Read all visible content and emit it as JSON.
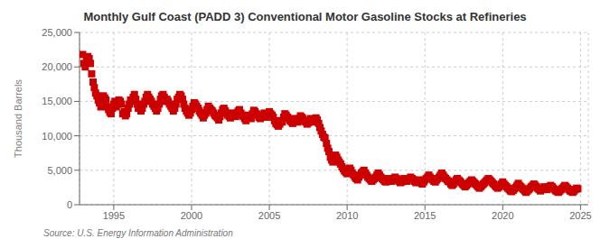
{
  "chart_data": {
    "type": "scatter",
    "title": "Monthly Gulf Coast (PADD 3) Conventional Motor Gasoline Stocks at Refineries",
    "ylabel": "Thousand Barrels",
    "annotations": [
      "Source: U.S. Energy Information Administration"
    ],
    "color": "#CC0000",
    "marker": "square",
    "grid": true,
    "xlim": [
      1992.8,
      2025.5
    ],
    "xticks": [
      1995,
      2000,
      2005,
      2010,
      2015,
      2020,
      2025
    ],
    "ylim": [
      0,
      25000
    ],
    "yticks": [
      0,
      {
        "value": 5000,
        "label": "5,000"
      },
      {
        "value": 10000,
        "label": "10,000"
      },
      {
        "value": 15000,
        "label": "15,000"
      },
      {
        "value": 20000,
        "label": "20,000"
      },
      {
        "value": 25000,
        "label": "25,000"
      }
    ],
    "x": [
      1993.0,
      1993.08,
      1993.17,
      1993.25,
      1993.33,
      1993.42,
      1993.5,
      1993.58,
      1993.67,
      1993.75,
      1993.83,
      1993.92,
      1994.0,
      1994.08,
      1994.17,
      1994.25,
      1994.33,
      1994.42,
      1994.5,
      1994.58,
      1994.67,
      1994.75,
      1994.83,
      1994.92,
      1995.0,
      1995.08,
      1995.17,
      1995.25,
      1995.33,
      1995.42,
      1995.5,
      1995.58,
      1995.67,
      1995.75,
      1995.83,
      1995.92,
      1996.0,
      1996.08,
      1996.17,
      1996.25,
      1996.33,
      1996.42,
      1996.5,
      1996.58,
      1996.67,
      1996.75,
      1996.83,
      1996.92,
      1997.0,
      1997.08,
      1997.17,
      1997.25,
      1997.33,
      1997.42,
      1997.5,
      1997.58,
      1997.67,
      1997.75,
      1997.83,
      1997.92,
      1998.0,
      1998.08,
      1998.17,
      1998.25,
      1998.33,
      1998.42,
      1998.5,
      1998.58,
      1998.67,
      1998.75,
      1998.83,
      1998.92,
      1999.0,
      1999.08,
      1999.17,
      1999.25,
      1999.33,
      1999.42,
      1999.5,
      1999.58,
      1999.67,
      1999.75,
      1999.83,
      1999.92,
      2000.0,
      2000.08,
      2000.17,
      2000.25,
      2000.33,
      2000.42,
      2000.5,
      2000.58,
      2000.67,
      2000.75,
      2000.83,
      2000.92,
      2001.0,
      2001.08,
      2001.17,
      2001.25,
      2001.33,
      2001.42,
      2001.5,
      2001.58,
      2001.67,
      2001.75,
      2001.83,
      2001.92,
      2002.0,
      2002.08,
      2002.17,
      2002.25,
      2002.33,
      2002.42,
      2002.5,
      2002.58,
      2002.67,
      2002.75,
      2002.83,
      2002.92,
      2003.0,
      2003.08,
      2003.17,
      2003.25,
      2003.33,
      2003.42,
      2003.5,
      2003.58,
      2003.67,
      2003.75,
      2003.83,
      2003.92,
      2004.0,
      2004.08,
      2004.17,
      2004.25,
      2004.33,
      2004.42,
      2004.5,
      2004.58,
      2004.67,
      2004.75,
      2004.83,
      2004.92,
      2005.0,
      2005.08,
      2005.17,
      2005.25,
      2005.33,
      2005.42,
      2005.5,
      2005.58,
      2005.67,
      2005.75,
      2005.83,
      2005.92,
      2006.0,
      2006.08,
      2006.17,
      2006.25,
      2006.33,
      2006.42,
      2006.5,
      2006.58,
      2006.67,
      2006.75,
      2006.83,
      2006.92,
      2007.0,
      2007.08,
      2007.17,
      2007.25,
      2007.33,
      2007.42,
      2007.5,
      2007.58,
      2007.67,
      2007.75,
      2007.83,
      2007.92,
      2008.0,
      2008.08,
      2008.17,
      2008.25,
      2008.33,
      2008.42,
      2008.5,
      2008.58,
      2008.67,
      2008.75,
      2008.83,
      2008.92,
      2009.0,
      2009.08,
      2009.17,
      2009.25,
      2009.33,
      2009.42,
      2009.5,
      2009.58,
      2009.67,
      2009.75,
      2009.83,
      2009.92,
      2010.0,
      2010.08,
      2010.17,
      2010.25,
      2010.33,
      2010.42,
      2010.5,
      2010.58,
      2010.67,
      2010.75,
      2010.83,
      2010.92,
      2011.0,
      2011.08,
      2011.17,
      2011.25,
      2011.33,
      2011.42,
      2011.5,
      2011.58,
      2011.67,
      2011.75,
      2011.83,
      2011.92,
      2012.0,
      2012.08,
      2012.17,
      2012.25,
      2012.33,
      2012.42,
      2012.5,
      2012.58,
      2012.67,
      2012.75,
      2012.83,
      2012.92,
      2013.0,
      2013.08,
      2013.17,
      2013.25,
      2013.33,
      2013.42,
      2013.5,
      2013.58,
      2013.67,
      2013.75,
      2013.83,
      2013.92,
      2014.0,
      2014.08,
      2014.17,
      2014.25,
      2014.33,
      2014.42,
      2014.5,
      2014.58,
      2014.67,
      2014.75,
      2014.83,
      2014.92,
      2015.0,
      2015.08,
      2015.17,
      2015.25,
      2015.33,
      2015.42,
      2015.5,
      2015.58,
      2015.67,
      2015.75,
      2015.83,
      2015.92,
      2016.0,
      2016.08,
      2016.17,
      2016.25,
      2016.33,
      2016.42,
      2016.5,
      2016.58,
      2016.67,
      2016.75,
      2016.83,
      2016.92,
      2017.0,
      2017.08,
      2017.17,
      2017.25,
      2017.33,
      2017.42,
      2017.5,
      2017.58,
      2017.67,
      2017.75,
      2017.83,
      2017.92,
      2018.0,
      2018.08,
      2018.17,
      2018.25,
      2018.33,
      2018.42,
      2018.5,
      2018.58,
      2018.67,
      2018.75,
      2018.83,
      2018.92,
      2019.0,
      2019.08,
      2019.17,
      2019.25,
      2019.33,
      2019.42,
      2019.5,
      2019.58,
      2019.67,
      2019.75,
      2019.83,
      2019.92,
      2020.0,
      2020.08,
      2020.17,
      2020.25,
      2020.33,
      2020.42,
      2020.5,
      2020.58,
      2020.67,
      2020.75,
      2020.83,
      2020.92,
      2021.0,
      2021.08,
      2021.17,
      2021.25,
      2021.33,
      2021.42,
      2021.5,
      2021.58,
      2021.67,
      2021.75,
      2021.83,
      2021.92,
      2022.0,
      2022.08,
      2022.17,
      2022.25,
      2022.33,
      2022.42,
      2022.5,
      2022.58,
      2022.67,
      2022.75,
      2022.83,
      2022.92,
      2023.0,
      2023.08,
      2023.17,
      2023.25,
      2023.33,
      2023.42,
      2023.5,
      2023.58,
      2023.67,
      2023.75,
      2023.83,
      2023.92,
      2024.0,
      2024.08,
      2024.17,
      2024.25,
      2024.33,
      2024.42,
      2024.5,
      2024.58,
      2024.67,
      2024.75,
      2024.83
    ],
    "values": [
      21800,
      20500,
      20000,
      20800,
      21500,
      21200,
      20500,
      19000,
      17800,
      17000,
      16200,
      15800,
      15200,
      14800,
      14200,
      15000,
      15800,
      15500,
      15200,
      14200,
      13800,
      13400,
      13200,
      14000,
      14600,
      15000,
      14200,
      14600,
      15200,
      15000,
      14600,
      13200,
      13500,
      12900,
      13200,
      14000,
      14600,
      15200,
      15000,
      15600,
      16000,
      15300,
      14600,
      14000,
      14300,
      13600,
      14000,
      14600,
      15000,
      15600,
      16000,
      15600,
      15300,
      15000,
      14600,
      14300,
      14000,
      13600,
      14000,
      14600,
      15300,
      15800,
      16000,
      15600,
      15000,
      15300,
      15000,
      14600,
      14300,
      14000,
      13600,
      14000,
      14600,
      15300,
      15600,
      16000,
      15800,
      15300,
      14600,
      14000,
      13600,
      13300,
      13000,
      13300,
      13800,
      14300,
      14800,
      14600,
      14300,
      14000,
      13600,
      13300,
      13000,
      12600,
      13000,
      13300,
      13800,
      14300,
      14000,
      13800,
      13600,
      13300,
      13000,
      12800,
      12600,
      12300,
      12800,
      13300,
      13800,
      14000,
      13600,
      13300,
      13000,
      12800,
      12600,
      13000,
      13300,
      13000,
      12800,
      13300,
      13600,
      13800,
      13300,
      13000,
      12800,
      12500,
      12200,
      12700,
      13000,
      12700,
      12500,
      13200,
      13700,
      13500,
      13200,
      13000,
      12700,
      12500,
      12700,
      13000,
      13300,
      13000,
      12700,
      13000,
      13500,
      13200,
      13000,
      12700,
      12200,
      11800,
      11600,
      11400,
      11700,
      12200,
      12000,
      12700,
      13200,
      13000,
      12700,
      12500,
      12200,
      12000,
      11800,
      12200,
      12500,
      12200,
      12000,
      12500,
      12900,
      12700,
      12500,
      12200,
      12000,
      11700,
      11900,
      12200,
      12500,
      12200,
      12000,
      12200,
      12600,
      12300,
      11800,
      11200,
      10700,
      10200,
      9800,
      9700,
      8900,
      8200,
      7700,
      6900,
      6500,
      6200,
      6700,
      7200,
      6900,
      6500,
      6200,
      5900,
      5500,
      5200,
      4900,
      4700,
      4500,
      5000,
      5300,
      5000,
      4600,
      4300,
      4000,
      3800,
      3600,
      4000,
      4300,
      4600,
      4800,
      5000,
      4600,
      4300,
      4000,
      3800,
      3600,
      3400,
      3600,
      3800,
      4000,
      4300,
      4600,
      4300,
      4000,
      3800,
      3600,
      3400,
      3300,
      3600,
      3800,
      3600,
      3400,
      3600,
      3800,
      4000,
      3800,
      3600,
      3400,
      3200,
      3300,
      3600,
      3800,
      3600,
      3400,
      3600,
      3800,
      4000,
      3800,
      3600,
      3400,
      3200,
      3300,
      3600,
      3400,
      3200,
      3000,
      3300,
      3600,
      3800,
      4000,
      4300,
      4000,
      3800,
      3600,
      3400,
      3300,
      3600,
      3800,
      4000,
      4300,
      4600,
      4300,
      4000,
      3800,
      3600,
      3400,
      3300,
      3000,
      2800,
      3000,
      3300,
      3600,
      3800,
      3600,
      3400,
      3200,
      3000,
      2800,
      2600,
      2800,
      3000,
      3200,
      3400,
      3600,
      3400,
      3200,
      3000,
      2800,
      2600,
      2400,
      2600,
      2800,
      3000,
      3200,
      3400,
      3600,
      3800,
      3600,
      3400,
      3200,
      3000,
      2800,
      2600,
      2400,
      2600,
      2800,
      3000,
      3300,
      3000,
      2800,
      2600,
      2400,
      2200,
      2000,
      1900,
      2100,
      2300,
      2500,
      2800,
      3100,
      2800,
      2600,
      2400,
      2200,
      2000,
      1800,
      2000,
      2200,
      2400,
      2600,
      2800,
      3000,
      2800,
      2600,
      2400,
      2200,
      2000,
      2200,
      2400,
      2600,
      2400,
      2200,
      2400,
      2600,
      2800,
      2600,
      2400,
      2200,
      2000,
      1900,
      1800,
      2000,
      2200,
      2400,
      2600,
      2800,
      2600,
      2400,
      2200,
      2000,
      1900,
      1800,
      2000,
      2200,
      2400,
      2300
    ]
  }
}
